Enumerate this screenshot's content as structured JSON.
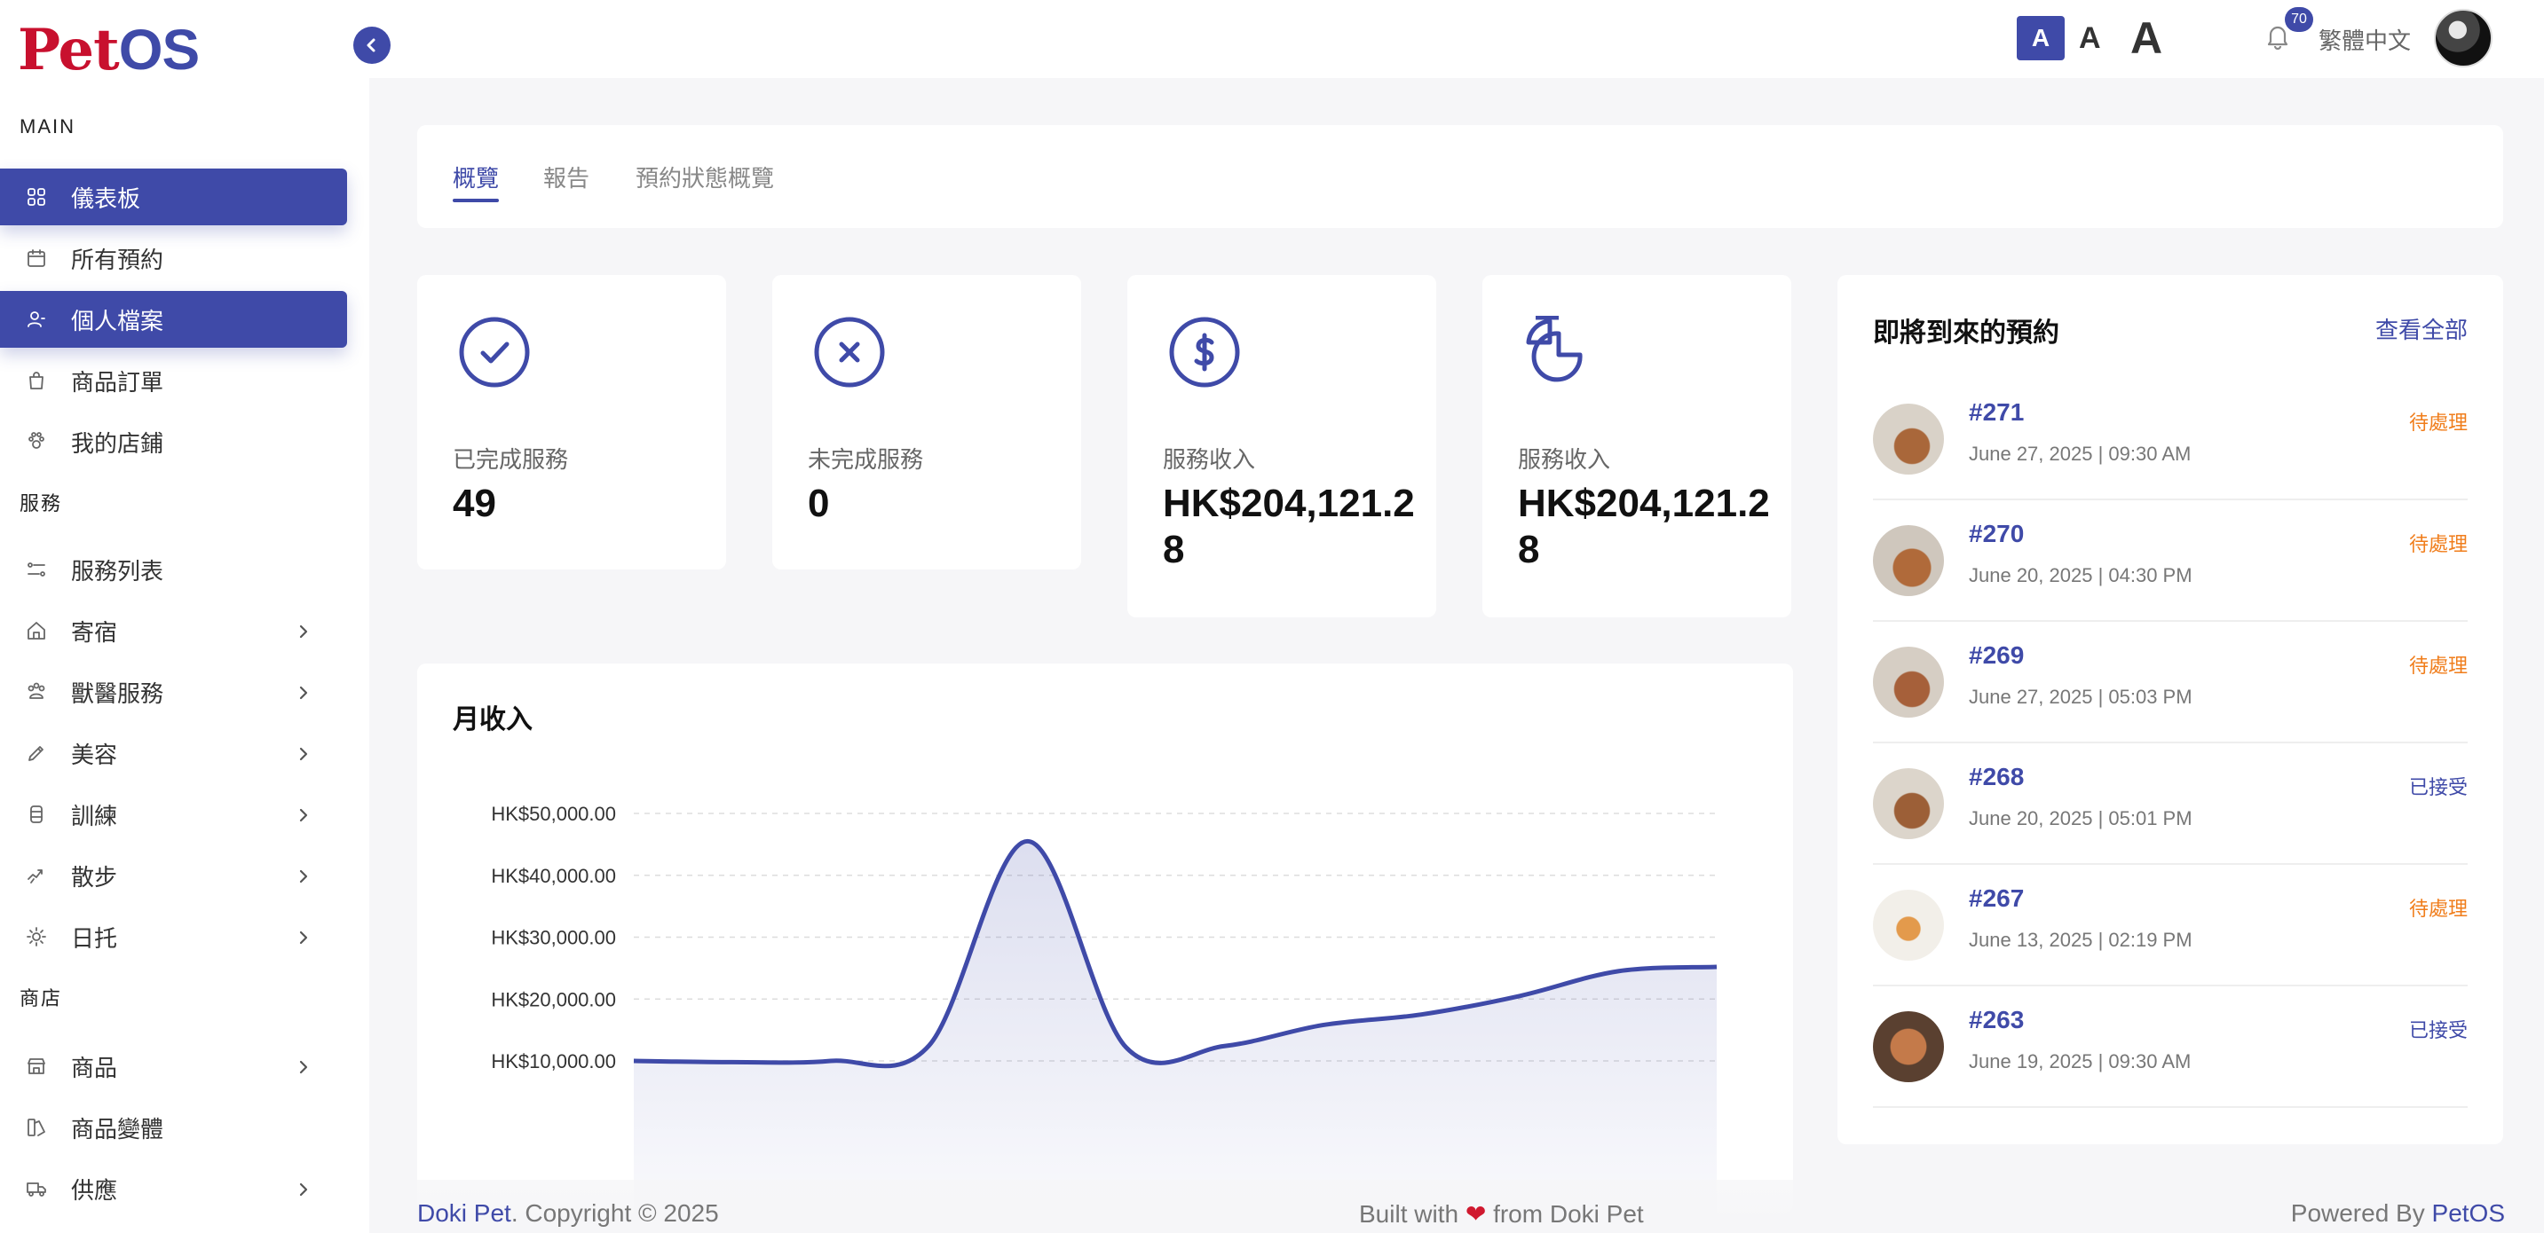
{
  "brand": {
    "part1": "Pet",
    "part2": "OS"
  },
  "sidebar": {
    "section_main": "MAIN",
    "items_main": [
      {
        "label": "儀表板",
        "icon": "grid-icon",
        "active": true
      },
      {
        "label": "所有預約",
        "icon": "calendar-icon",
        "active": false
      },
      {
        "label": "個人檔案",
        "icon": "user-icon",
        "active": true
      },
      {
        "label": "商品訂單",
        "icon": "bag-icon",
        "active": false
      },
      {
        "label": "我的店鋪",
        "icon": "paw-icon",
        "active": false
      }
    ],
    "section_services": "服務",
    "items_services": [
      {
        "label": "服務列表",
        "icon": "list-icon",
        "expandable": false
      },
      {
        "label": "寄宿",
        "icon": "home-icon",
        "expandable": true
      },
      {
        "label": "獸醫服務",
        "icon": "vet-icon",
        "expandable": true
      },
      {
        "label": "美容",
        "icon": "brush-icon",
        "expandable": true
      },
      {
        "label": "訓練",
        "icon": "training-icon",
        "expandable": true
      },
      {
        "label": "散步",
        "icon": "walk-icon",
        "expandable": true
      },
      {
        "label": "日托",
        "icon": "daycare-icon",
        "expandable": true
      }
    ],
    "section_shop": "商店",
    "items_shop": [
      {
        "label": "商品",
        "icon": "store-icon",
        "expandable": true
      },
      {
        "label": "商品變體",
        "icon": "variant-icon",
        "expandable": false
      },
      {
        "label": "供應",
        "icon": "truck-icon",
        "expandable": true
      }
    ]
  },
  "topbar": {
    "font_small": "A",
    "font_medium": "A",
    "font_large": "A",
    "notification_count": "70",
    "language": "繁體中文"
  },
  "tabs": [
    "概覽",
    "報告",
    "預約狀態概覽"
  ],
  "stats": [
    {
      "label": "已完成服務",
      "value": "49",
      "icon": "check-circle-icon"
    },
    {
      "label": "未完成服務",
      "value": "0",
      "icon": "x-circle-icon"
    },
    {
      "label": "服務收入",
      "value": "HK$204,121.28",
      "icon": "dollar-circle-icon"
    },
    {
      "label": "服務收入",
      "value": "HK$204,121.28",
      "icon": "pie-chart-icon"
    }
  ],
  "chart_data": {
    "type": "area",
    "title": "月收入",
    "xlabel": "",
    "ylabel": "",
    "ylim": [
      0,
      52000
    ],
    "y_ticks": [
      "HK$10,000.00",
      "HK$20,000.00",
      "HK$30,000.00",
      "HK$40,000.00",
      "HK$50,000.00"
    ],
    "y_tick_values": [
      10000,
      20000,
      30000,
      40000,
      50000
    ],
    "x_index": [
      0,
      1,
      2,
      3,
      4,
      5,
      6,
      7,
      8,
      9,
      10,
      11
    ],
    "values": [
      10000,
      9800,
      10000,
      12500,
      45500,
      12200,
      12400,
      15800,
      17500,
      20500,
      24500,
      25200
    ],
    "grid": true,
    "color": "#3f4aa8"
  },
  "upcoming": {
    "title": "即將到來的預約",
    "view_all": "查看全部",
    "items": [
      {
        "id": "#271",
        "date": "June 27, 2025 | 09:30 AM",
        "status": "待處理",
        "kind": "pending"
      },
      {
        "id": "#270",
        "date": "June 20, 2025 | 04:30 PM",
        "status": "待處理",
        "kind": "pending"
      },
      {
        "id": "#269",
        "date": "June 27, 2025 | 05:03 PM",
        "status": "待處理",
        "kind": "pending"
      },
      {
        "id": "#268",
        "date": "June 20, 2025 | 05:01 PM",
        "status": "已接受",
        "kind": "accepted"
      },
      {
        "id": "#267",
        "date": "June 13, 2025 | 02:19 PM",
        "status": "待處理",
        "kind": "pending"
      },
      {
        "id": "#263",
        "date": "June 19, 2025 | 09:30 AM",
        "status": "已接受",
        "kind": "accepted"
      }
    ]
  },
  "footer": {
    "left_brand": "Doki Pet",
    "left_rest": ". Copyright © 2025",
    "center_a": "Built with ",
    "center_b": " from Doki Pet",
    "right_a": "Powered By ",
    "right_brand": "PetOS"
  },
  "colors": {
    "primary": "#3f4aa8",
    "pending": "#f07d1b",
    "logo_red": "#c8102e"
  }
}
